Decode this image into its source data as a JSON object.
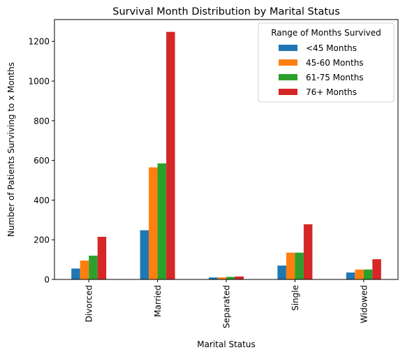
{
  "chart_data": {
    "type": "bar",
    "title": "Survival Month Distribution by Marital Status",
    "xlabel": "Marital Status",
    "ylabel": "Number of Patients Surviving to x Months",
    "categories": [
      "Divorced",
      "Married",
      "Separated",
      "Single",
      "Widowed"
    ],
    "series": [
      {
        "name": "<45 Months",
        "color": "#1f77b4",
        "values": [
          55,
          248,
          10,
          70,
          35
        ]
      },
      {
        "name": "45-60 Months",
        "color": "#ff7f0e",
        "values": [
          95,
          565,
          10,
          135,
          50
        ]
      },
      {
        "name": "61-75 Months",
        "color": "#2ca02c",
        "values": [
          120,
          585,
          13,
          135,
          50
        ]
      },
      {
        "name": "76+ Months",
        "color": "#d62728",
        "values": [
          215,
          1248,
          15,
          278,
          102
        ]
      }
    ],
    "ylim": [
      0,
      1310
    ],
    "yticks": [
      0,
      200,
      400,
      600,
      800,
      1000,
      1200
    ],
    "legend": {
      "title": "Range of Months Survived",
      "position": "top-right"
    },
    "grid": false
  }
}
